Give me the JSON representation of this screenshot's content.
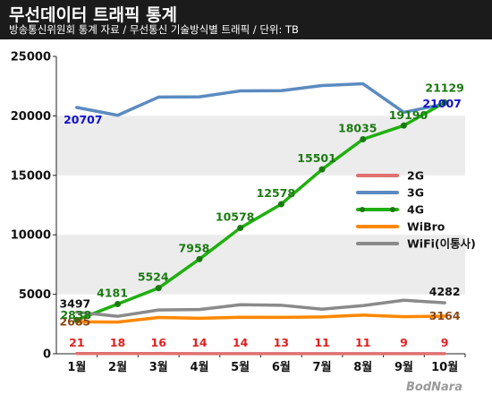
{
  "title": "무선데이터 트래픽 통계",
  "subtitle": "방송통신위원회 통계 자료 / 무선통신 기술방식별 트래픽 / 단위: TB",
  "brand": "BodNara",
  "chart_data": {
    "type": "line",
    "categories": [
      "1월",
      "2월",
      "3월",
      "4월",
      "5월",
      "6월",
      "7월",
      "8월",
      "9월",
      "10월"
    ],
    "ylim": [
      0,
      25000
    ],
    "yticks": [
      0,
      5000,
      10000,
      15000,
      20000,
      25000
    ],
    "grid": "alternating horizontal bands",
    "legend_position": "right",
    "series": [
      {
        "name": "2G",
        "color": "#e07070",
        "marker": false,
        "values": [
          21,
          18,
          16,
          14,
          14,
          13,
          11,
          11,
          9,
          9
        ],
        "label_color": "#e02020",
        "labels": [
          "21",
          "18",
          "16",
          "14",
          "14",
          "13",
          "11",
          "11",
          "9",
          "9"
        ]
      },
      {
        "name": "3G",
        "color": "#5b8bc0",
        "marker": false,
        "values": [
          20707,
          20050,
          21580,
          21600,
          22100,
          22120,
          22550,
          22700,
          20300,
          21007
        ],
        "label_color": "#1010cc",
        "labels": [
          "20707",
          "",
          "",
          "",
          "",
          "",
          "",
          "",
          "",
          "21007"
        ]
      },
      {
        "name": "4G",
        "color": "#20b010",
        "marker": true,
        "values": [
          2838,
          4181,
          5524,
          7958,
          10578,
          12578,
          15501,
          18035,
          19190,
          21129
        ],
        "label_color": "#1a7a10",
        "labels": [
          "",
          "4181",
          "5524",
          "7958",
          "10578",
          "12578",
          "15501",
          "18035",
          "19190",
          "21129"
        ]
      },
      {
        "name": "WiBro",
        "color": "#ff8800",
        "marker": false,
        "values": [
          2685,
          2660,
          3050,
          2980,
          3070,
          3060,
          3100,
          3250,
          3120,
          3164
        ],
        "label_color": "#8b4513",
        "labels": [
          "2685",
          "",
          "",
          "",
          "",
          "",
          "",
          "",
          "",
          "3164"
        ]
      },
      {
        "name": "WiFi(이통사)",
        "color": "#8a8a8a",
        "marker": false,
        "values": [
          3497,
          3150,
          3680,
          3720,
          4120,
          4080,
          3750,
          4050,
          4500,
          4282
        ],
        "label_color": "#111111",
        "labels": [
          "3497",
          "",
          "",
          "",
          "",
          "",
          "",
          "",
          "",
          "4282"
        ]
      }
    ],
    "extra_labels": [
      {
        "text": "2838",
        "category_index": 0,
        "color": "#1a7a10"
      }
    ]
  }
}
